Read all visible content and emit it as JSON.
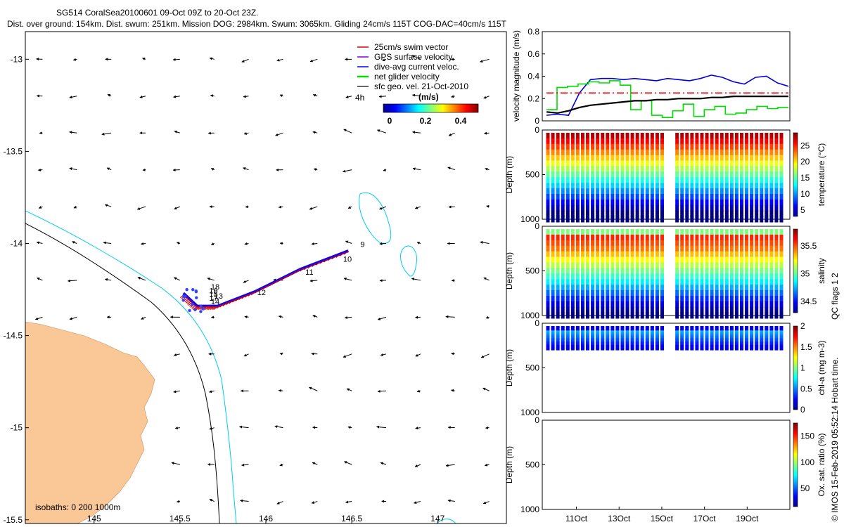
{
  "chart_data": [
    {
      "type": "map",
      "title_line1": "SG514 CoralSea20100601 09-Oct 09Z to 20-Oct 23Z.",
      "title_line2": "Dist. over ground: 154km. Dist. swum: 251km. Mission DOG: 2984km. Swum: 3065km. Gliding 24cm/s 115T COG-DAC=40cm/s 115T",
      "xlim": [
        144.6,
        147.4
      ],
      "ylim": [
        -15.52,
        -12.85
      ],
      "xticks": [
        145,
        145.5,
        146,
        146.5,
        147
      ],
      "xtick_labels": [
        "145",
        "145.5",
        "146",
        "146.5",
        "147"
      ],
      "yticks": [
        -13,
        -13.5,
        -14,
        -14.5,
        -15,
        -15.5
      ],
      "ytick_labels": [
        "-13",
        "-13.5",
        "-14",
        "-14.5",
        "-15",
        "-15.5"
      ],
      "legend": [
        {
          "label": "25cm/s swim vector",
          "color": "#dd0000"
        },
        {
          "label": "GPS surface velocity",
          "color": "#8800cc"
        },
        {
          "label": "dive-avg current veloc.",
          "color": "#0000ff"
        },
        {
          "label": "net glider velocity",
          "color": "#00dd00"
        },
        {
          "label": "sfc geo. vel. 21-Oct-2010",
          "color": "#000000"
        }
      ],
      "legend_extra": "4h",
      "colorbar": {
        "unit": "(m/s)",
        "min": 0,
        "max": 0.5,
        "ticks": [
          "0",
          "0.2",
          "0.4"
        ]
      },
      "track_day_labels": [
        "9",
        "10",
        "11",
        "12",
        "13",
        "14",
        "15",
        "16",
        "17",
        "18"
      ],
      "track_points": [
        [
          146.48,
          -14.04
        ],
        [
          146.2,
          -14.14
        ],
        [
          145.94,
          -14.26
        ],
        [
          145.72,
          -14.34
        ],
        [
          145.6,
          -14.34
        ],
        [
          145.52,
          -14.27
        ]
      ],
      "isobath_note": "isobaths: 0   200  1000m",
      "geo_vector_direction": "westward"
    },
    {
      "type": "line",
      "ylabel": "velocity magnitude (m/s)",
      "ylim": [
        0,
        0.8
      ],
      "yticks": [
        "0",
        "0.2",
        "0.4",
        "0.6",
        "0.8"
      ],
      "series": [
        {
          "name": "dive-avg current",
          "color": "#0000dd",
          "y": [
            0.05,
            0.06,
            0.05,
            0.25,
            0.37,
            0.38,
            0.38,
            0.37,
            0.38,
            0.37,
            0.36,
            0.38,
            0.37,
            0.36,
            0.38,
            0.41,
            0.39,
            0.35,
            0.33,
            0.39,
            0.4,
            0.34,
            0.31
          ]
        },
        {
          "name": "net glider velocity",
          "color": "#00dd00",
          "y": [
            0.1,
            0.3,
            0.31,
            0.33,
            0.35,
            0.34,
            0.36,
            0.32,
            0.1,
            0.18,
            0.05,
            0.03,
            0.09,
            0.15,
            0.04,
            0.1,
            0.13,
            0.06,
            0.07,
            0.1,
            0.13,
            0.11,
            0.12
          ]
        },
        {
          "name": "swim speed 0.25",
          "color": "#dd0000",
          "y": [
            0.25,
            0.25
          ]
        },
        {
          "name": "sfc geo speed",
          "color": "#000000",
          "y": [
            0.08,
            0.07,
            0.09,
            0.12,
            0.14,
            0.15,
            0.16,
            0.17,
            0.18,
            0.18,
            0.19,
            0.19,
            0.2,
            0.2,
            0.2,
            0.21,
            0.21,
            0.22,
            0.22,
            0.22,
            0.22,
            0.22,
            0.22
          ]
        }
      ]
    },
    {
      "type": "heatmap",
      "ylabel": "Depth (m)",
      "cbar_label": "temperature (°C)",
      "ylim": [
        0,
        1000
      ],
      "yticks": [
        "0",
        "500",
        "1000"
      ],
      "cbar_ticks": [
        "25",
        "20",
        "15",
        "10",
        "5"
      ],
      "cbar_range": [
        3,
        29
      ]
    },
    {
      "type": "heatmap",
      "ylabel": "Depth (m)",
      "cbar_label": "salinity",
      "ylim": [
        0,
        1000
      ],
      "yticks": [
        "0",
        "500",
        "1000"
      ],
      "cbar_ticks": [
        "35.5",
        "35",
        "34.5"
      ],
      "cbar_range": [
        34.3,
        35.8
      ]
    },
    {
      "type": "heatmap",
      "ylabel": "Depth (m)",
      "cbar_label": "chl-a (mg m-3)",
      "ylim": [
        0,
        1000
      ],
      "yticks": [
        "0",
        "500",
        "1000"
      ],
      "cbar_ticks": [
        "2",
        "1.5",
        "1",
        "0.5",
        "0"
      ],
      "cbar_range": [
        0,
        2
      ]
    },
    {
      "type": "heatmap",
      "ylabel": "Depth (m)",
      "cbar_label": "Ox. sat. ratio (%)",
      "ylim": [
        0,
        1000
      ],
      "yticks": [
        "0",
        "500",
        "1000"
      ],
      "cbar_ticks": [
        "150",
        "100",
        "50"
      ],
      "cbar_range": [
        15,
        175
      ],
      "xticks": [
        "11Oct",
        "13Oct",
        "15Oct",
        "17Oct",
        "19Oct"
      ]
    }
  ],
  "qc_note": "QC flags 1  2",
  "credit": "© IMOS 15-Feb-2019 05:52:14 Hobart time."
}
